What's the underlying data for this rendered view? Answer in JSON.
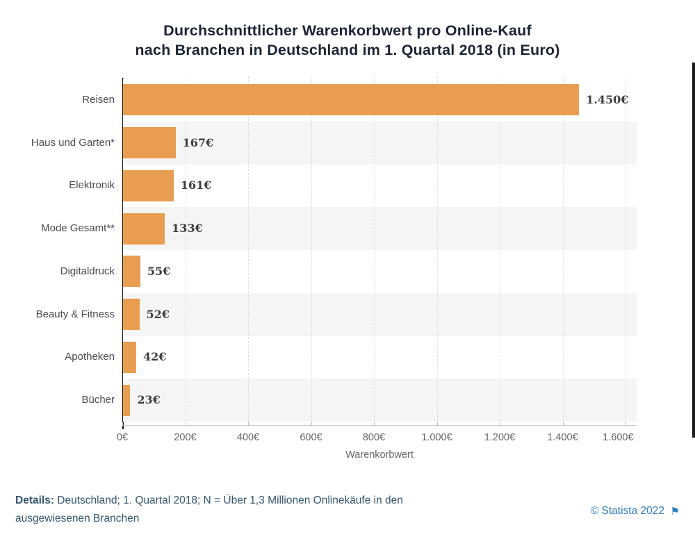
{
  "title": {
    "line1": "Durchschnittlicher Warenkorbwert pro Online-Kauf",
    "line2": "nach Branchen in Deutschland im 1. Quartal 2018 (in Euro)"
  },
  "chart_data": {
    "type": "bar",
    "orientation": "horizontal",
    "categories": [
      "Reisen",
      "Haus und Garten*",
      "Elektronik",
      "Mode Gesamt**",
      "Digitaldruck",
      "Beauty & Fitness",
      "Apotheken",
      "Bücher"
    ],
    "values": [
      1450,
      167,
      161,
      133,
      55,
      52,
      42,
      23
    ],
    "value_labels": [
      "1.450€",
      "167€",
      "161€",
      "133€",
      "55€",
      "52€",
      "42€",
      "23€"
    ],
    "xlabel": "Warenkorbwert",
    "ylabel": "",
    "xlim": [
      0,
      1600
    ],
    "x_tick_values": [
      0,
      200,
      400,
      600,
      800,
      1000,
      1200,
      1400,
      1600
    ],
    "x_tick_labels": [
      "0€",
      "200€",
      "400€",
      "600€",
      "800€",
      "1.000€",
      "1.200€",
      "1.400€",
      "1.600€"
    ],
    "grid": true,
    "legend": "none",
    "bar_color": "#E99D50",
    "stripe_color": "#F5F5F5"
  },
  "footer": {
    "details_label": "Details:",
    "details_text": " Deutschland; 1. Quartal 2018; N = Über 1,3 Millionen Onlinekäufe in den ausgewiesenen Branchen",
    "copyright": "© Statista 2022",
    "flag_icon": "⚑",
    "accent_color": "#2E7CBE"
  }
}
